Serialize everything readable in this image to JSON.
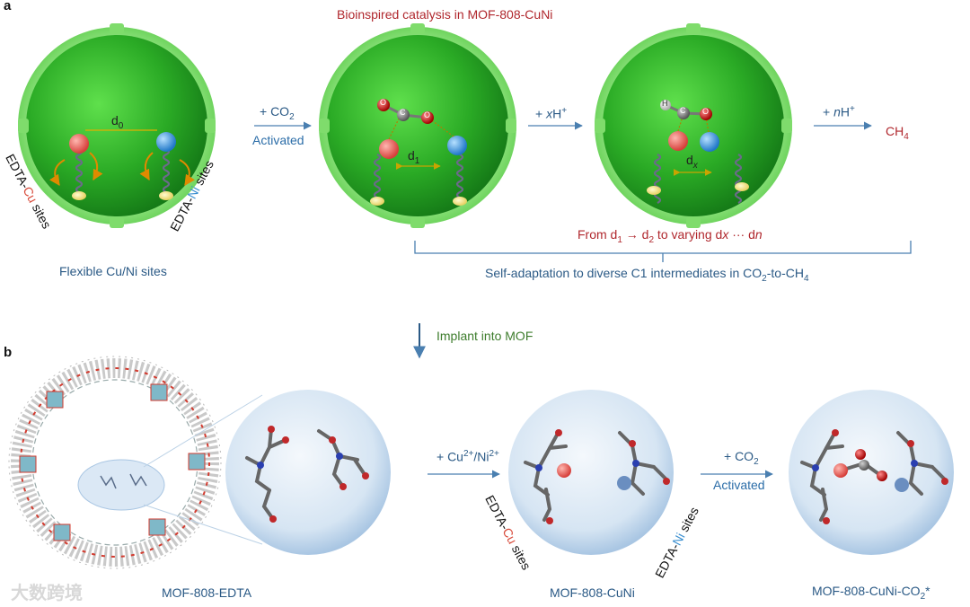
{
  "panel_a": {
    "letter": "a",
    "title": "Bioinspired catalysis in MOF-808-CuNi",
    "flexible_label": "Flexible Cu/Ni sites",
    "d0": "d",
    "d0_sub": "0",
    "d1": "d",
    "d1_sub": "1",
    "dx": "d",
    "dx_sub": "x",
    "edta_cu_prefix": "EDTA-",
    "edta_cu_metal": "Cu",
    "edta_cu_suffix": " sites",
    "edta_ni_prefix": "EDTA-",
    "edta_ni_metal": "Ni",
    "edta_ni_suffix": " sites",
    "step1_top": "+ CO",
    "step1_top_sub": "2",
    "step1_bottom": "Activated",
    "step2_top_pre": "+ ",
    "step2_top_x": "x",
    "step2_top_h": "H",
    "step2_top_sup": "+",
    "step3_top_pre": "+ ",
    "step3_top_n": "n",
    "step3_top_h": "H",
    "step3_top_sup": "+",
    "product": "CH",
    "product_sub": "4",
    "bracket_top": "From d",
    "bracket_top_sub1": "1",
    "bracket_arrow": " → d",
    "bracket_top_sub2": "2",
    "bracket_tail": " to varying d",
    "bracket_x": "x",
    "bracket_dots": " ··· d",
    "bracket_n": "n",
    "bracket_bottom_pre": "Self-adaptation to diverse C1 intermediates in CO",
    "bracket_bottom_sub": "2",
    "bracket_bottom_post": "-to-CH",
    "bracket_bottom_sub2": "4",
    "atom_o": "O",
    "atom_c": "C",
    "atom_h": "H"
  },
  "implant_label": "Implant into MOF",
  "panel_b": {
    "letter": "b",
    "mof_edta": "MOF-808-EDTA",
    "mof_cuni": "MOF-808-CuNi",
    "mof_cuni_co2": "MOF-808-CuNi-CO",
    "mof_cuni_co2_sub": "2",
    "mof_cuni_co2_star": "*",
    "step1_pre": "+ Cu",
    "step1_sup1": "2+",
    "step1_mid": "/Ni",
    "step1_sup2": "2+",
    "step2_top": "+ CO",
    "step2_top_sub": "2",
    "step2_bottom": "Activated",
    "edta_cu_prefix": "EDTA-",
    "edta_cu_metal": "Cu",
    "edta_cu_suffix": " sites",
    "edta_ni_prefix": "EDTA-",
    "edta_ni_metal": "Ni",
    "edta_ni_suffix": " sites"
  },
  "watermark": "大数跨境",
  "colors": {
    "sphere_green": "#2fb52a",
    "cu_ball": "#e8605c",
    "ni_ball": "#3b9be0",
    "arrow_blue": "#4a7fb0",
    "title_red": "#b0272d",
    "bubble_blue": "#c9dcef"
  }
}
